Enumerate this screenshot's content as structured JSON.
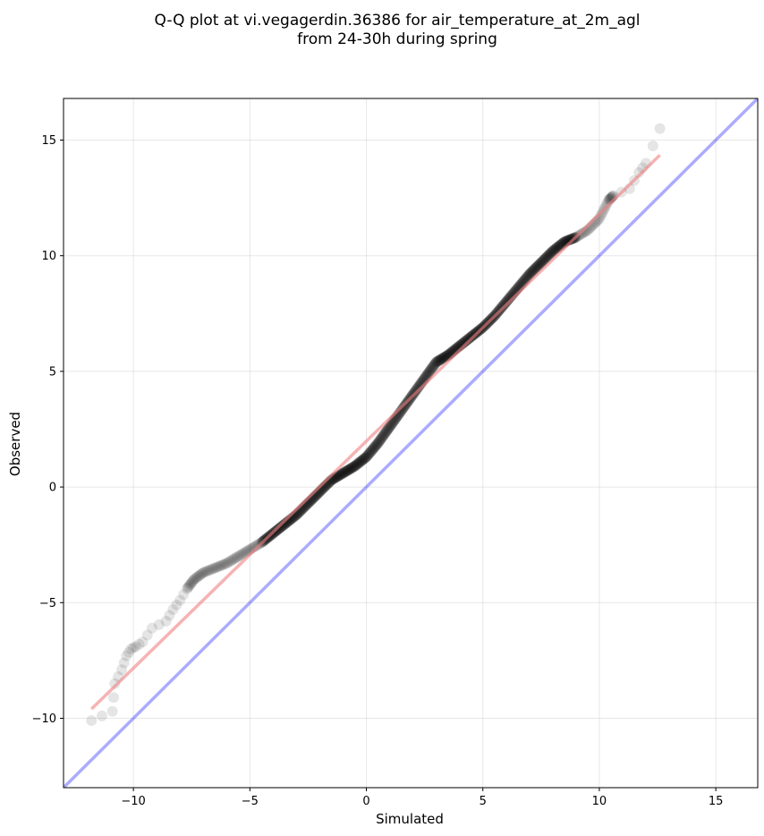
{
  "chart_data": {
    "type": "scatter",
    "title": [
      "Q-Q plot at vi.vegagerdin.36386 for air_temperature_at_2m_agl",
      "from 24-30h during spring"
    ],
    "xlabel": "Simulated",
    "ylabel": "Observed",
    "xlim": [
      -13,
      16.8
    ],
    "ylim": [
      -13,
      16.8
    ],
    "xticks": [
      -10,
      -5,
      0,
      5,
      10,
      15
    ],
    "yticks": [
      -10,
      -5,
      0,
      5,
      10,
      15
    ],
    "xtick_labels": [
      "−10",
      "−5",
      "0",
      "5",
      "10",
      "15"
    ],
    "ytick_labels": [
      "−10",
      "−5",
      "0",
      "5",
      "10",
      "15"
    ],
    "grid": true,
    "legend": "none",
    "quantile_anchors": [
      [
        -11.8,
        -10.1
      ],
      [
        -10.9,
        -9.7
      ],
      [
        -10.8,
        -8.5
      ],
      [
        -10.5,
        -7.9
      ],
      [
        -10.3,
        -7.3
      ],
      [
        -10.1,
        -7.0
      ],
      [
        -9.9,
        -6.9
      ],
      [
        -9.6,
        -6.7
      ],
      [
        -9.2,
        -6.1
      ],
      [
        -8.6,
        -5.8
      ],
      [
        -8.3,
        -5.3
      ],
      [
        -8.0,
        -4.9
      ],
      [
        -7.7,
        -4.4
      ],
      [
        -7.4,
        -4.0
      ],
      [
        -7.0,
        -3.7
      ],
      [
        -6.5,
        -3.5
      ],
      [
        -6.0,
        -3.3
      ],
      [
        -5.5,
        -3.0
      ],
      [
        -5.0,
        -2.7
      ],
      [
        -4.5,
        -2.4
      ],
      [
        -4.0,
        -2.0
      ],
      [
        -3.5,
        -1.6
      ],
      [
        -3.0,
        -1.2
      ],
      [
        -2.5,
        -0.7
      ],
      [
        -2.0,
        -0.2
      ],
      [
        -1.5,
        0.3
      ],
      [
        -1.0,
        0.6
      ],
      [
        -0.5,
        0.9
      ],
      [
        0.0,
        1.3
      ],
      [
        0.5,
        1.9
      ],
      [
        1.0,
        2.6
      ],
      [
        1.5,
        3.3
      ],
      [
        2.0,
        4.0
      ],
      [
        2.5,
        4.7
      ],
      [
        3.0,
        5.4
      ],
      [
        3.5,
        5.7
      ],
      [
        4.0,
        6.1
      ],
      [
        4.5,
        6.5
      ],
      [
        5.0,
        6.9
      ],
      [
        5.5,
        7.4
      ],
      [
        6.0,
        8.0
      ],
      [
        6.5,
        8.6
      ],
      [
        7.0,
        9.2
      ],
      [
        7.5,
        9.7
      ],
      [
        8.0,
        10.2
      ],
      [
        8.5,
        10.6
      ],
      [
        9.0,
        10.8
      ],
      [
        9.5,
        11.1
      ],
      [
        10.0,
        11.6
      ],
      [
        10.4,
        12.4
      ],
      [
        10.6,
        12.6
      ],
      [
        11.3,
        12.9
      ],
      [
        11.7,
        13.6
      ],
      [
        12.0,
        14.0
      ],
      [
        12.6,
        15.5
      ]
    ],
    "series": [
      {
        "kind": "scatter",
        "color": "#000000",
        "opacity": 0.1,
        "marker_radius": 6
      },
      {
        "kind": "line",
        "role": "fit",
        "color": "#f08080",
        "opacity": 0.6,
        "x": [
          -11.8,
          12.6
        ],
        "y": [
          -9.6,
          14.35
        ]
      },
      {
        "kind": "line",
        "role": "identity",
        "color": "#0000ff",
        "opacity": 0.33,
        "x": [
          -13,
          16.8
        ],
        "y": [
          -13,
          16.8
        ]
      }
    ]
  }
}
